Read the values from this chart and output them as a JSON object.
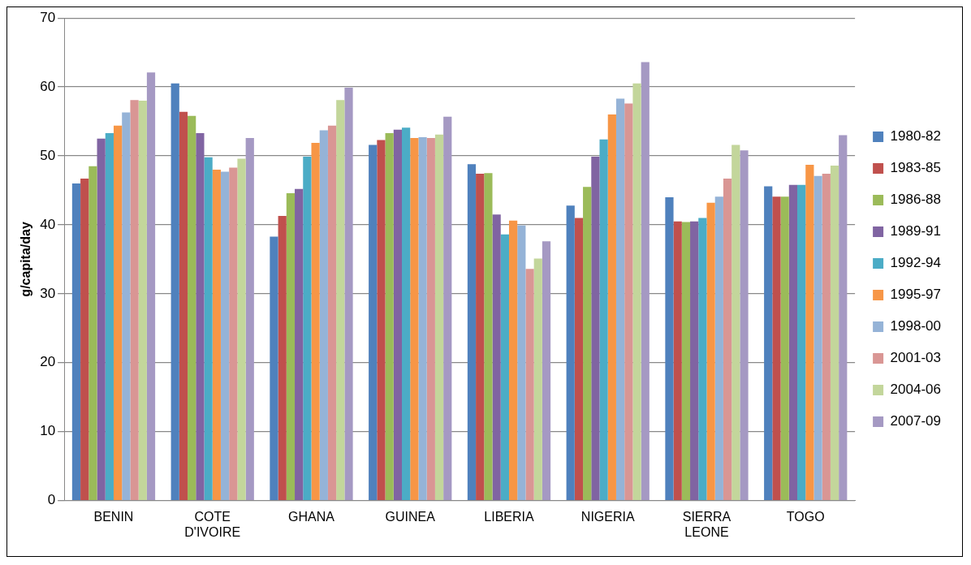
{
  "chart_data": {
    "type": "bar",
    "ylabel": "g/capita/day",
    "categories": [
      "BENIN",
      "COTE D'IVOIRE",
      "GHANA",
      "GUINEA",
      "LIBERIA",
      "NIGERIA",
      "SIERRA LEONE",
      "TOGO"
    ],
    "series": [
      {
        "name": "1980-82",
        "color": "#4f81bd",
        "values": [
          46,
          60.5,
          38.3,
          51.6,
          48.8,
          42.8,
          44,
          45.6
        ]
      },
      {
        "name": "1983-85",
        "color": "#c0504d",
        "values": [
          46.7,
          56.4,
          41.3,
          52.3,
          47.4,
          41,
          40.5,
          44.1
        ]
      },
      {
        "name": "1986-88",
        "color": "#9bbb59",
        "values": [
          48.5,
          55.8,
          44.6,
          53.3,
          47.5,
          45.5,
          40.4,
          44.1
        ]
      },
      {
        "name": "1989-91",
        "color": "#8064a2",
        "values": [
          52.5,
          53.3,
          45.2,
          53.8,
          41.5,
          49.9,
          40.5,
          45.8
        ]
      },
      {
        "name": "1992-94",
        "color": "#4bacc6",
        "values": [
          53.3,
          49.8,
          49.9,
          54.1,
          38.6,
          52.4,
          41,
          45.8
        ]
      },
      {
        "name": "1995-97",
        "color": "#f79646",
        "values": [
          54.4,
          48,
          51.9,
          52.6,
          40.6,
          56,
          43.2,
          48.7
        ]
      },
      {
        "name": "1998-00",
        "color": "#95b3d7",
        "values": [
          56.3,
          47.7,
          53.7,
          52.7,
          39.9,
          58.3,
          44.1,
          47.1
        ]
      },
      {
        "name": "2001-03",
        "color": "#d99694",
        "values": [
          58.1,
          48.3,
          54.4,
          52.6,
          33.6,
          57.6,
          46.7,
          47.4
        ]
      },
      {
        "name": "2004-06",
        "color": "#c3d69b",
        "values": [
          58,
          49.6,
          58.1,
          53.1,
          35.1,
          60.5,
          51.6,
          48.6
        ]
      },
      {
        "name": "2007-09",
        "color": "#a599c3",
        "values": [
          62.1,
          52.6,
          59.9,
          55.7,
          37.6,
          63.6,
          50.8,
          53
        ]
      }
    ],
    "ylim": [
      0,
      70
    ],
    "yticks": [
      0,
      10,
      20,
      30,
      40,
      50,
      60,
      70
    ],
    "grid": "y",
    "legend": "right"
  }
}
